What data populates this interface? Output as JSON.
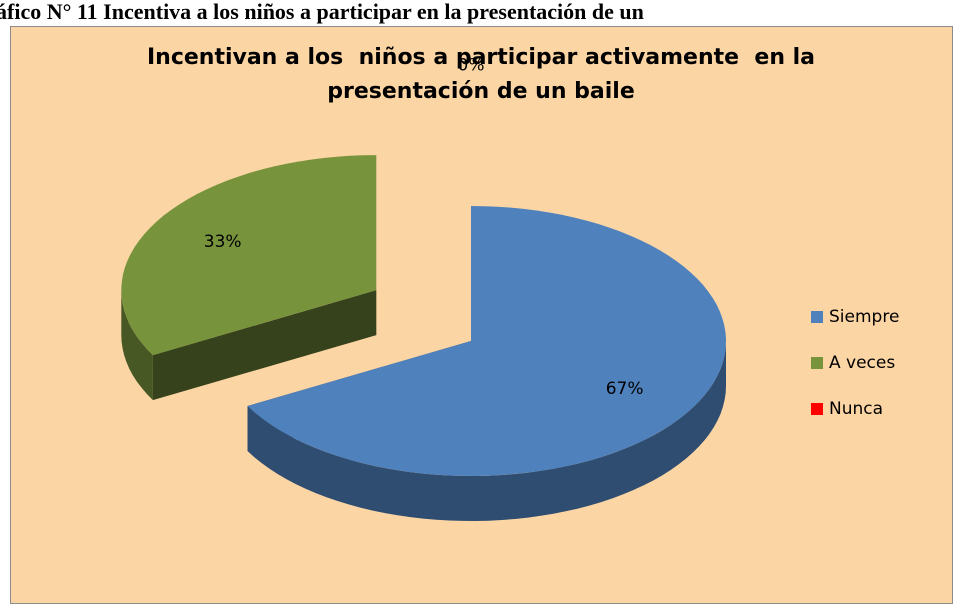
{
  "caption": "áfico N° 11 Incentiva a los niños a participar en la presentación de un",
  "chart_data": {
    "type": "pie",
    "title": "Incentivan a los  niños a participar activamente  en la presentación de un baile",
    "categories": [
      "Siempre",
      "A veces",
      "Nunca"
    ],
    "values": [
      67,
      33,
      0
    ],
    "value_labels": [
      "67%",
      "33%",
      "0%"
    ],
    "colors": [
      "#4f81bd",
      "#77933c",
      "#ff0000"
    ],
    "legend": "right"
  }
}
